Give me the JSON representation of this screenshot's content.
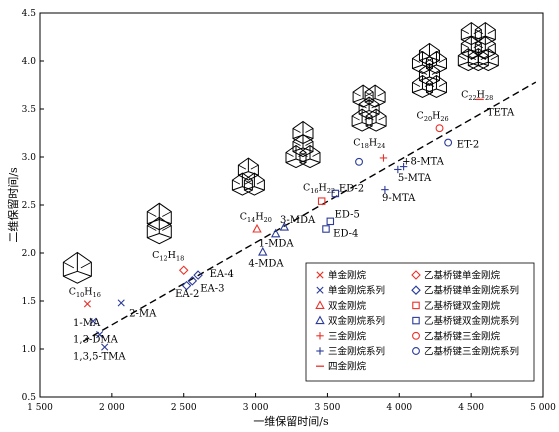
{
  "chart_data": {
    "type": "scatter",
    "title": "",
    "xlabel": "一维保留时间/s",
    "ylabel": "二维保留时间/s",
    "xlim": [
      1500,
      5000
    ],
    "ylim": [
      0.5,
      4.5
    ],
    "x_ticks": [
      1500,
      2000,
      2500,
      3000,
      3500,
      4000,
      4500,
      5000
    ],
    "x_tick_labels": [
      "1 500",
      "2 000",
      "2 500",
      "3 000",
      "3 500",
      "4 000",
      "4 500",
      "5 000"
    ],
    "y_ticks": [
      0.5,
      1.0,
      1.5,
      2.0,
      2.5,
      3.0,
      3.5,
      4.0,
      4.5
    ],
    "y_tick_labels": [
      "0.5",
      "1.0",
      "1.5",
      "2.0",
      "2.5",
      "3.0",
      "3.5",
      "4.0",
      "4.5"
    ],
    "grid": false,
    "legend_position": "bottom-right",
    "trend_line": {
      "style": "dashed",
      "x": [
        1800,
        4950
      ],
      "y": [
        1.08,
        3.78
      ]
    },
    "series": [
      {
        "name": "单金刚烷",
        "marker": "x",
        "color": "#e8332a",
        "points": [
          [
            1830,
            1.47
          ]
        ]
      },
      {
        "name": "单金刚烷系列",
        "marker": "x",
        "color": "#2b3b98",
        "points": [
          [
            1870,
            1.29
          ],
          [
            1915,
            1.15
          ],
          [
            1950,
            1.02
          ],
          [
            2065,
            1.48
          ]
        ]
      },
      {
        "name": "双金刚烷",
        "marker": "triangle",
        "color": "#e8332a",
        "points": [
          [
            3010,
            2.25
          ]
        ]
      },
      {
        "name": "双金刚烷系列",
        "marker": "triangle",
        "color": "#2b3b98",
        "points": [
          [
            3050,
            2.01
          ],
          [
            3140,
            2.2
          ],
          [
            3200,
            2.27
          ]
        ]
      },
      {
        "name": "三金刚烷",
        "marker": "plus",
        "color": "#e8332a",
        "points": [
          [
            3890,
            2.99
          ]
        ]
      },
      {
        "name": "三金刚烷系列",
        "marker": "plus",
        "color": "#2b3b98",
        "points": [
          [
            3900,
            2.66
          ],
          [
            3990,
            2.87
          ],
          [
            4030,
            2.9
          ]
        ]
      },
      {
        "name": "四金刚烷",
        "marker": "dash",
        "color": "#e8332a",
        "points": [
          [
            4560,
            3.6
          ]
        ]
      },
      {
        "name": "乙基桥键单金刚烷",
        "marker": "diamond",
        "color": "#e8332a",
        "points": [
          [
            2500,
            1.82
          ]
        ]
      },
      {
        "name": "乙基桥键单金刚烷系列",
        "marker": "diamond",
        "color": "#2b3b98",
        "points": [
          [
            2520,
            1.66
          ],
          [
            2560,
            1.71
          ],
          [
            2600,
            1.77
          ]
        ]
      },
      {
        "name": "乙基桥键双金刚烷",
        "marker": "square",
        "color": "#e8332a",
        "points": [
          [
            3460,
            2.54
          ]
        ]
      },
      {
        "name": "乙基桥键双金刚烷系列",
        "marker": "square",
        "color": "#2b3b98",
        "points": [
          [
            3490,
            2.25
          ],
          [
            3520,
            2.33
          ],
          [
            3555,
            2.62
          ]
        ]
      },
      {
        "name": "乙基桥键三金刚烷",
        "marker": "circle",
        "color": "#e8332a",
        "points": [
          [
            4280,
            3.3
          ]
        ]
      },
      {
        "name": "乙基桥键三金刚烷系列",
        "marker": "circle",
        "color": "#2b3b98",
        "points": [
          [
            3720,
            2.95
          ],
          [
            4340,
            3.15
          ]
        ]
      }
    ],
    "annotations": [
      {
        "text": "1-MA",
        "x": 1730,
        "y": 1.24
      },
      {
        "text": "1,3-DMA",
        "x": 1730,
        "y": 1.07
      },
      {
        "text": "1,3,5-TMA",
        "x": 1730,
        "y": 0.89
      },
      {
        "text": "2-MA",
        "x": 2120,
        "y": 1.34
      },
      {
        "text": "EA-2",
        "x": 2440,
        "y": 1.54
      },
      {
        "text": "EA-3",
        "x": 2615,
        "y": 1.6
      },
      {
        "text": "EA-4",
        "x": 2680,
        "y": 1.75
      },
      {
        "text": "4-MDA",
        "x": 2950,
        "y": 1.86
      },
      {
        "text": "1-MDA",
        "x": 3020,
        "y": 2.07
      },
      {
        "text": "3-MDA",
        "x": 3170,
        "y": 2.31
      },
      {
        "text": "ED-2",
        "x": 3580,
        "y": 2.64
      },
      {
        "text": "ED-5",
        "x": 3550,
        "y": 2.37
      },
      {
        "text": "ED-4",
        "x": 3540,
        "y": 2.17
      },
      {
        "text": "9-MTA",
        "x": 3880,
        "y": 2.54
      },
      {
        "text": "5-MTA",
        "x": 3990,
        "y": 2.75
      },
      {
        "text": "+8-MTA",
        "x": 4020,
        "y": 2.92
      },
      {
        "text": "ET-2",
        "x": 4400,
        "y": 3.1
      },
      {
        "text": "TETA",
        "x": 4610,
        "y": 3.43
      }
    ],
    "formulas": [
      {
        "base": "C",
        "sub1": "10",
        "mid": "H",
        "sub2": "16",
        "x": 1700,
        "y": 1.57
      },
      {
        "base": "C",
        "sub1": "12",
        "mid": "H",
        "sub2": "18",
        "x": 2280,
        "y": 1.95
      },
      {
        "base": "C",
        "sub1": "14",
        "mid": "H",
        "sub2": "20",
        "x": 2890,
        "y": 2.35
      },
      {
        "base": "C",
        "sub1": "16",
        "mid": "H",
        "sub2": "22",
        "x": 3330,
        "y": 2.65
      },
      {
        "base": "C",
        "sub1": "18",
        "mid": "H",
        "sub2": "24",
        "x": 3680,
        "y": 3.12
      },
      {
        "base": "C",
        "sub1": "20",
        "mid": "H",
        "sub2": "26",
        "x": 4120,
        "y": 3.4
      },
      {
        "base": "C",
        "sub1": "22",
        "mid": "H",
        "sub2": "28",
        "x": 4430,
        "y": 3.62
      }
    ],
    "structures": [
      {
        "name": "adamantane-structure-icon",
        "cage": 1,
        "x": 1760,
        "y": 1.86
      },
      {
        "name": "diamantane-structure-icon",
        "cage": 2,
        "x": 2330,
        "y": 2.32
      },
      {
        "name": "triamantane-structure-icon",
        "cage": 3,
        "x": 2950,
        "y": 2.78
      },
      {
        "name": "tetramantane-structure-icon",
        "cage": 4,
        "x": 3330,
        "y": 3.13
      },
      {
        "name": "pentamantane-structure-icon",
        "cage": 5,
        "x": 3790,
        "y": 3.52
      },
      {
        "name": "hexamantane-structure-icon",
        "cage": 6,
        "x": 4210,
        "y": 3.87
      },
      {
        "name": "heptamantane-structure-icon",
        "cage": 7,
        "x": 4550,
        "y": 4.15
      }
    ]
  }
}
